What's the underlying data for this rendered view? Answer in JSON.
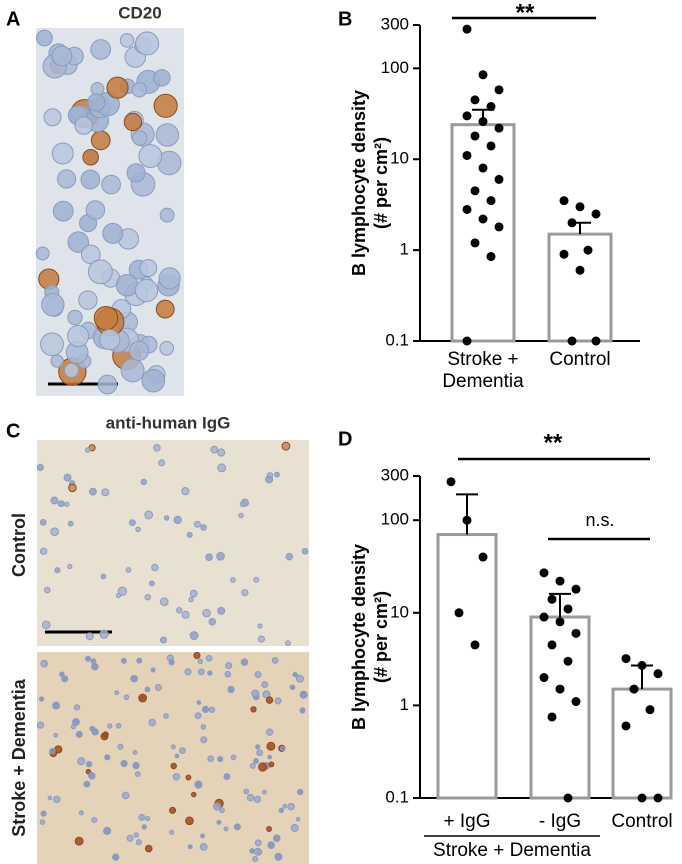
{
  "panels": {
    "a": {
      "label": "A",
      "title": "CD20"
    },
    "b": {
      "label": "B"
    },
    "c": {
      "label": "C",
      "title": "anti-human IgG",
      "row_labels": [
        "Control",
        "Stroke + Dementia"
      ]
    },
    "d": {
      "label": "D"
    }
  },
  "chart_data": [
    {
      "type": "bar",
      "ylabel": [
        "B lymphocyte density",
        "(# per cm²)"
      ],
      "categories": [
        "Stroke +\nDementia",
        "Control"
      ],
      "values": [
        24,
        1.5
      ],
      "errors": [
        11,
        0.5
      ],
      "points": [
        [
          270,
          85,
          58,
          45,
          38,
          30,
          26,
          22,
          18,
          14,
          11,
          8,
          6,
          4.5,
          3.5,
          2.8,
          2.2,
          1.8,
          1.2,
          0.85,
          0.1
        ],
        [
          3.5,
          3,
          2.5,
          2,
          1,
          0.9,
          0.6,
          0.1,
          0.1
        ]
      ],
      "log_scale": true,
      "ylim": [
        0.1,
        300
      ],
      "yticks": [
        0.1,
        1,
        10,
        100,
        300
      ],
      "bar_color": "#9a9a9a",
      "point_color": "#000000",
      "significance": [
        {
          "label": "**"
        }
      ]
    },
    {
      "type": "bar",
      "ylabel": [
        "B lymphocyte density",
        "(# per cm²)"
      ],
      "categories": [
        "+ IgG",
        "- IgG",
        "Control"
      ],
      "group_label": "Stroke + Dementia",
      "values": [
        70,
        9,
        1.5
      ],
      "errors": [
        120,
        7,
        1.2
      ],
      "points": [
        [
          260,
          100,
          40,
          10,
          4.5
        ],
        [
          27,
          22,
          18,
          14,
          11,
          9,
          8,
          6,
          4.5,
          3,
          2,
          1.5,
          1.1,
          0.75,
          0.1
        ],
        [
          3.2,
          2.7,
          2.2,
          1.5,
          0.9,
          0.6,
          0.1,
          0.1
        ]
      ],
      "log_scale": true,
      "ylim": [
        0.1,
        300
      ],
      "yticks": [
        0.1,
        1,
        10,
        100,
        300
      ],
      "bar_color": "#9a9a9a",
      "point_color": "#000000",
      "significance": [
        {
          "label": "**"
        },
        {
          "label": "n.s."
        }
      ]
    }
  ]
}
